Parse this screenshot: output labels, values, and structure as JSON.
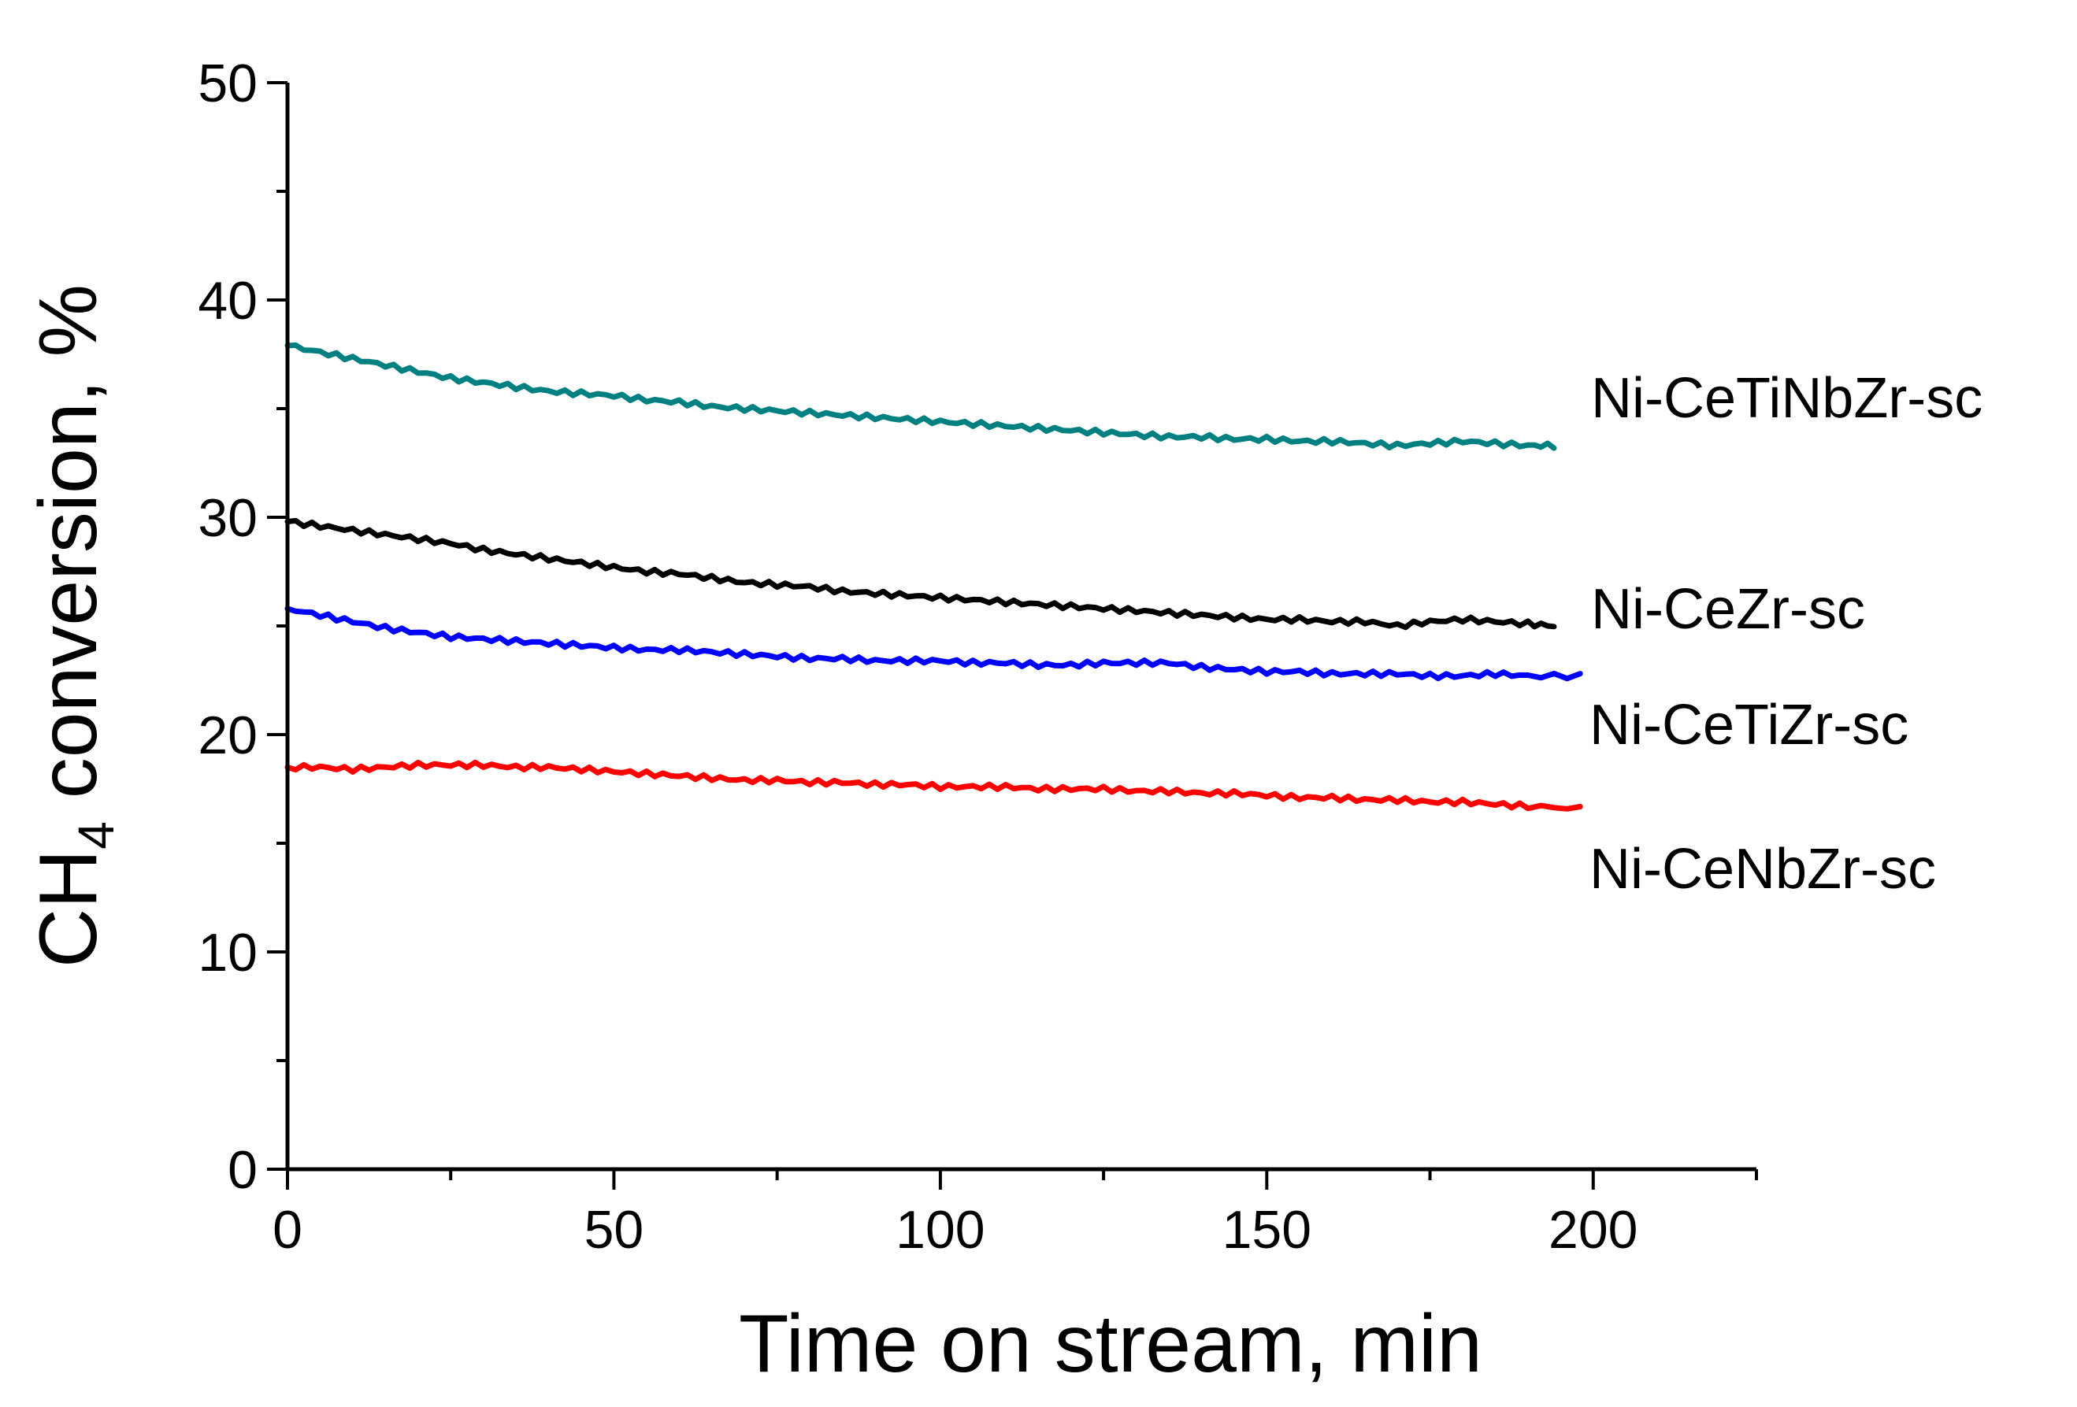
{
  "chart_data": {
    "type": "line",
    "xlabel": "Time on stream, min",
    "ylabel": {
      "main": "CH",
      "sub": "4",
      "rest": " conversion, %"
    },
    "xlim": [
      0,
      225
    ],
    "ylim": [
      0,
      50
    ],
    "x_ticks": [
      0,
      50,
      100,
      150,
      200
    ],
    "y_ticks": [
      0,
      10,
      20,
      30,
      40,
      50
    ],
    "grid": false,
    "series": [
      {
        "name": "Ni-CeTiNbZr-sc",
        "color": "#008080",
        "x": [
          0,
          5,
          10,
          15,
          20,
          25,
          30,
          35,
          40,
          45,
          50,
          55,
          60,
          65,
          70,
          75,
          80,
          85,
          90,
          95,
          100,
          105,
          110,
          115,
          120,
          125,
          130,
          135,
          140,
          145,
          150,
          155,
          160,
          165,
          170,
          175,
          180,
          185,
          190,
          194
        ],
        "y": [
          37.9,
          37.6,
          37.3,
          37.0,
          36.7,
          36.4,
          36.2,
          36.0,
          35.8,
          35.7,
          35.6,
          35.4,
          35.3,
          35.1,
          35.0,
          34.9,
          34.8,
          34.7,
          34.6,
          34.5,
          34.4,
          34.3,
          34.2,
          34.1,
          34.0,
          33.9,
          33.8,
          33.7,
          33.7,
          33.6,
          33.6,
          33.5,
          33.5,
          33.4,
          33.3,
          33.4,
          33.5,
          33.4,
          33.3,
          33.3
        ]
      },
      {
        "name": "Ni-CeZr-sc",
        "color": "#000000",
        "x": [
          0,
          5,
          10,
          15,
          20,
          25,
          30,
          35,
          40,
          45,
          50,
          55,
          60,
          65,
          70,
          75,
          80,
          85,
          90,
          95,
          100,
          105,
          110,
          115,
          120,
          125,
          130,
          135,
          140,
          145,
          150,
          155,
          160,
          165,
          170,
          175,
          180,
          185,
          190,
          194
        ],
        "y": [
          29.8,
          29.6,
          29.4,
          29.2,
          29.0,
          28.8,
          28.5,
          28.3,
          28.1,
          27.9,
          27.7,
          27.5,
          27.4,
          27.2,
          27.0,
          26.9,
          26.8,
          26.6,
          26.5,
          26.4,
          26.3,
          26.2,
          26.1,
          26.0,
          25.9,
          25.8,
          25.7,
          25.6,
          25.5,
          25.4,
          25.3,
          25.3,
          25.2,
          25.2,
          25.0,
          25.2,
          25.3,
          25.2,
          25.1,
          25.0
        ]
      },
      {
        "name": "Ni-CeTiZr-sc",
        "color": "#0000ff",
        "x": [
          0,
          5,
          10,
          15,
          20,
          25,
          30,
          35,
          40,
          45,
          50,
          55,
          60,
          65,
          70,
          75,
          80,
          85,
          90,
          95,
          100,
          105,
          110,
          115,
          120,
          125,
          130,
          135,
          140,
          145,
          150,
          155,
          160,
          165,
          170,
          175,
          180,
          185,
          190,
          198
        ],
        "y": [
          25.8,
          25.5,
          25.2,
          24.9,
          24.7,
          24.5,
          24.4,
          24.3,
          24.2,
          24.1,
          24.0,
          23.9,
          23.9,
          23.8,
          23.7,
          23.6,
          23.5,
          23.5,
          23.4,
          23.4,
          23.4,
          23.3,
          23.3,
          23.2,
          23.2,
          23.3,
          23.3,
          23.3,
          23.1,
          23.0,
          22.9,
          22.9,
          22.8,
          22.8,
          22.8,
          22.7,
          22.7,
          22.8,
          22.7,
          22.7
        ]
      },
      {
        "name": "Ni-CeNbZr-sc",
        "color": "#ff0000",
        "x": [
          0,
          5,
          10,
          15,
          20,
          25,
          30,
          35,
          40,
          45,
          50,
          55,
          60,
          65,
          70,
          75,
          80,
          85,
          90,
          95,
          100,
          105,
          110,
          115,
          120,
          125,
          130,
          135,
          140,
          145,
          150,
          155,
          160,
          165,
          170,
          175,
          180,
          185,
          190,
          198
        ],
        "y": [
          18.5,
          18.5,
          18.4,
          18.5,
          18.6,
          18.6,
          18.6,
          18.5,
          18.5,
          18.4,
          18.3,
          18.2,
          18.1,
          18.0,
          17.9,
          17.9,
          17.8,
          17.8,
          17.7,
          17.7,
          17.6,
          17.6,
          17.6,
          17.5,
          17.5,
          17.5,
          17.4,
          17.4,
          17.3,
          17.3,
          17.2,
          17.1,
          17.1,
          17.0,
          17.0,
          16.9,
          16.9,
          16.8,
          16.7,
          16.6
        ]
      }
    ]
  }
}
